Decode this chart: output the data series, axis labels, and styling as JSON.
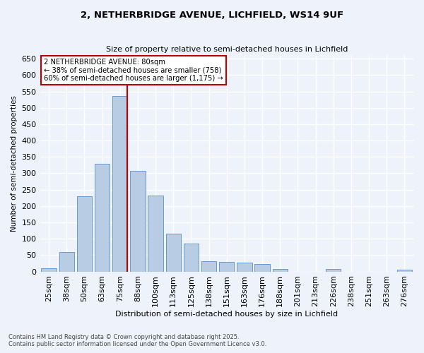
{
  "title_line1": "2, NETHERBRIDGE AVENUE, LICHFIELD, WS14 9UF",
  "title_line2": "Size of property relative to semi-detached houses in Lichfield",
  "xlabel": "Distribution of semi-detached houses by size in Lichfield",
  "ylabel": "Number of semi-detached properties",
  "categories": [
    "25sqm",
    "38sqm",
    "50sqm",
    "63sqm",
    "75sqm",
    "88sqm",
    "100sqm",
    "113sqm",
    "125sqm",
    "138sqm",
    "151sqm",
    "163sqm",
    "176sqm",
    "188sqm",
    "201sqm",
    "213sqm",
    "226sqm",
    "238sqm",
    "251sqm",
    "263sqm",
    "276sqm"
  ],
  "values": [
    10,
    60,
    230,
    330,
    537,
    308,
    233,
    115,
    85,
    32,
    30,
    28,
    22,
    7,
    0,
    0,
    7,
    0,
    0,
    0,
    5
  ],
  "bar_color": "#b8cce4",
  "bar_edgecolor": "#5b8dc8",
  "property_bin_index": 4,
  "vline_color": "#c00000",
  "annotation_text": "2 NETHERBRIDGE AVENUE: 80sqm\n← 38% of semi-detached houses are smaller (758)\n60% of semi-detached houses are larger (1,175) →",
  "annotation_box_edgecolor": "#c00000",
  "background_color": "#eef2fb",
  "grid_color": "#ffffff",
  "footer_line1": "Contains HM Land Registry data © Crown copyright and database right 2025.",
  "footer_line2": "Contains public sector information licensed under the Open Government Licence v3.0.",
  "ylim": [
    0,
    660
  ],
  "yticks": [
    0,
    50,
    100,
    150,
    200,
    250,
    300,
    350,
    400,
    450,
    500,
    550,
    600,
    650
  ]
}
